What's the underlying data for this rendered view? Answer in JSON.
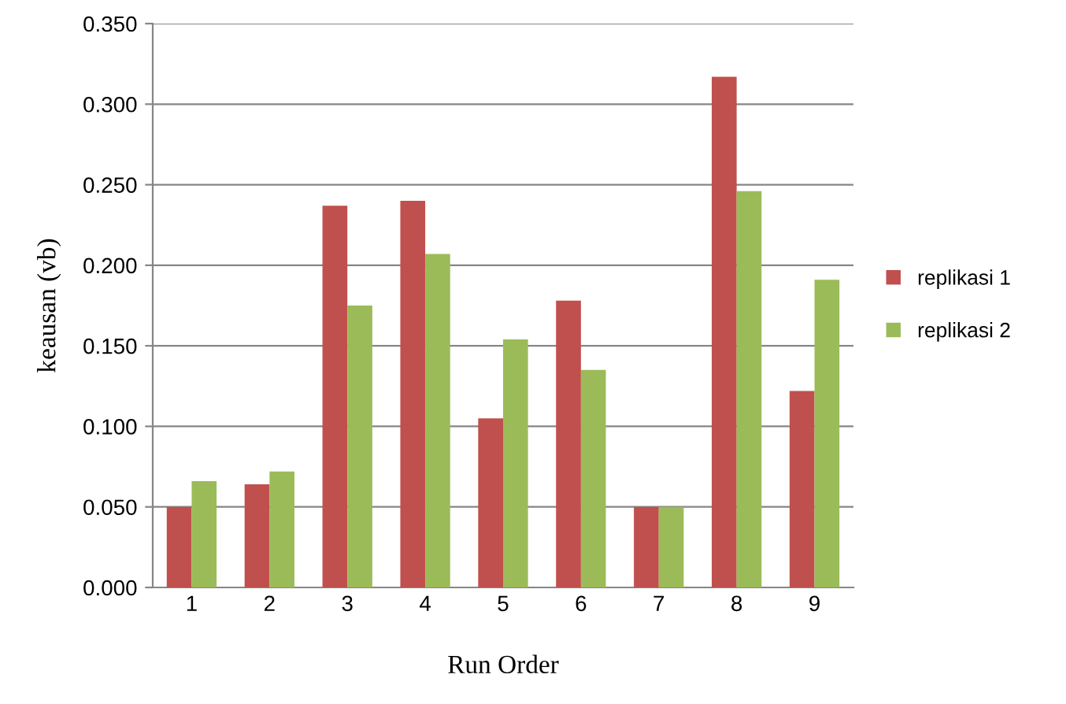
{
  "chart_data": {
    "type": "bar",
    "xlabel": "Run Order",
    "ylabel": "keausan (vb)",
    "categories": [
      "1",
      "2",
      "3",
      "4",
      "5",
      "6",
      "7",
      "8",
      "9"
    ],
    "series": [
      {
        "name": "replikasi 1",
        "color": "#c0504d",
        "values": [
          0.05,
          0.064,
          0.237,
          0.24,
          0.105,
          0.178,
          0.05,
          0.317,
          0.122
        ]
      },
      {
        "name": "replikasi 2",
        "color": "#9bbb59",
        "values": [
          0.066,
          0.072,
          0.175,
          0.207,
          0.154,
          0.135,
          0.05,
          0.246,
          0.191
        ]
      }
    ],
    "ylim": [
      0,
      0.35
    ],
    "yticks": [
      {
        "value": 0,
        "label": "0.000"
      },
      {
        "value": 0.05,
        "label": "0.050"
      },
      {
        "value": 0.1,
        "label": "0.100"
      },
      {
        "value": 0.15,
        "label": "0.150"
      },
      {
        "value": 0.2,
        "label": "0.200"
      },
      {
        "value": 0.25,
        "label": "0.250"
      },
      {
        "value": 0.3,
        "label": "0.300"
      },
      {
        "value": 0.35,
        "label": "0.350"
      }
    ],
    "grid": "y",
    "legend": "right"
  }
}
